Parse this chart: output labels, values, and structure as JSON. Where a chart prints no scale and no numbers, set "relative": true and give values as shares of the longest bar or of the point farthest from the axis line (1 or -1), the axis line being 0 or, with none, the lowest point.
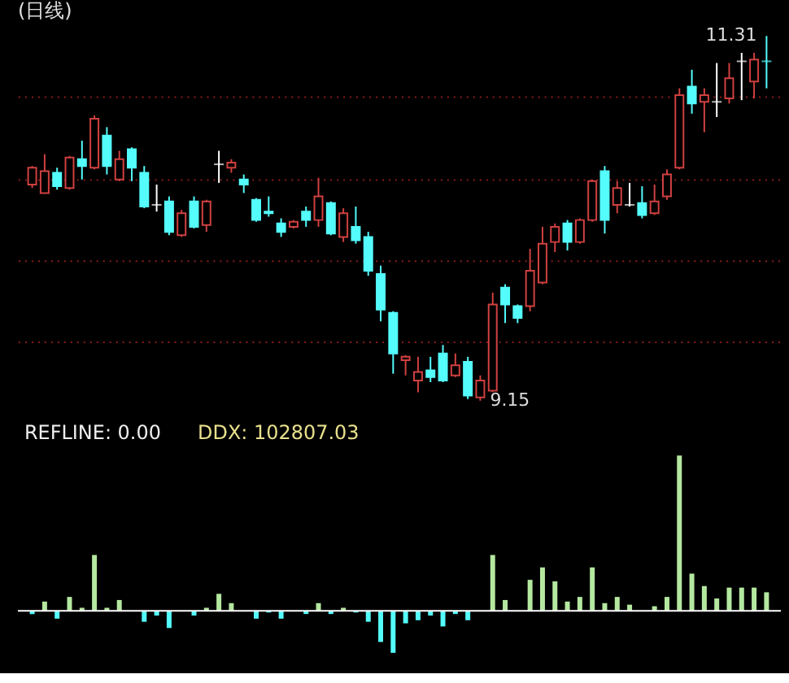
{
  "chart_data": [
    {
      "type": "candlestick",
      "title": "(日线)",
      "categories": [
        null,
        null,
        null,
        null,
        null,
        null,
        null,
        null,
        null,
        null,
        null,
        null,
        null,
        null,
        null,
        null,
        null,
        null,
        null,
        null,
        null,
        null,
        null,
        null,
        null,
        null,
        null,
        null,
        null,
        null,
        null,
        null,
        null,
        null,
        null,
        null,
        null,
        null,
        null,
        null,
        null,
        null,
        null,
        null,
        null,
        null,
        null,
        null,
        null,
        null,
        null,
        null,
        null,
        null,
        null,
        null,
        null,
        null,
        null,
        null
      ],
      "ohlc": [
        [
          10.43,
          10.54,
          10.41,
          10.53
        ],
        [
          10.38,
          10.61,
          10.38,
          10.51
        ],
        [
          10.5,
          10.53,
          10.4,
          10.42
        ],
        [
          10.41,
          10.6,
          10.4,
          10.59
        ],
        [
          10.58,
          10.69,
          10.46,
          10.54
        ],
        [
          10.53,
          10.84,
          10.52,
          10.82
        ],
        [
          10.72,
          10.77,
          10.49,
          10.54
        ],
        [
          10.46,
          10.63,
          10.45,
          10.58
        ],
        [
          10.64,
          10.65,
          10.45,
          10.53
        ],
        [
          10.5,
          10.54,
          10.29,
          10.3
        ],
        [
          10.31,
          10.43,
          10.27,
          10.31
        ],
        [
          10.33,
          10.36,
          10.13,
          10.15
        ],
        [
          10.13,
          10.28,
          10.12,
          10.26
        ],
        [
          10.33,
          10.36,
          10.17,
          10.18
        ],
        [
          10.19,
          10.34,
          10.15,
          10.33
        ],
        [
          10.55,
          10.63,
          10.44,
          10.55
        ],
        [
          10.53,
          10.58,
          10.5,
          10.56
        ],
        [
          10.46,
          10.49,
          10.38,
          10.43
        ],
        [
          10.34,
          10.35,
          10.21,
          10.22
        ],
        [
          10.27,
          10.36,
          10.24,
          10.26
        ],
        [
          10.2,
          10.23,
          10.12,
          10.15
        ],
        [
          10.18,
          10.22,
          10.17,
          10.21
        ],
        [
          10.27,
          10.3,
          10.18,
          10.22
        ],
        [
          10.22,
          10.47,
          10.18,
          10.36
        ],
        [
          10.32,
          10.33,
          10.13,
          10.14
        ],
        [
          10.12,
          10.29,
          10.09,
          10.26
        ],
        [
          10.18,
          10.3,
          10.08,
          10.1
        ],
        [
          10.12,
          10.15,
          9.89,
          9.92
        ],
        [
          9.9,
          9.95,
          9.62,
          9.69
        ],
        [
          9.67,
          9.68,
          9.31,
          9.43
        ],
        [
          9.39,
          9.42,
          9.3,
          9.41
        ],
        [
          9.27,
          9.41,
          9.2,
          9.32
        ],
        [
          9.33,
          9.41,
          9.26,
          9.29
        ],
        [
          9.43,
          9.48,
          9.26,
          9.27
        ],
        [
          9.3,
          9.43,
          9.29,
          9.36
        ],
        [
          9.38,
          9.41,
          9.16,
          9.18
        ],
        [
          9.17,
          9.3,
          9.15,
          9.27
        ],
        [
          9.21,
          9.79,
          9.2,
          9.72
        ],
        [
          9.82,
          9.84,
          9.61,
          9.72
        ],
        [
          9.71,
          9.72,
          9.61,
          9.64
        ],
        [
          9.71,
          10.05,
          9.68,
          9.92
        ],
        [
          9.85,
          10.18,
          9.84,
          10.08
        ],
        [
          10.09,
          10.2,
          10.03,
          10.18
        ],
        [
          10.2,
          10.22,
          10.04,
          10.09
        ],
        [
          10.09,
          10.23,
          10.08,
          10.22
        ],
        [
          10.22,
          10.46,
          10.21,
          10.45
        ],
        [
          10.51,
          10.54,
          10.14,
          10.22
        ],
        [
          10.31,
          10.45,
          10.26,
          10.41
        ],
        [
          10.31,
          10.44,
          10.3,
          10.31
        ],
        [
          10.32,
          10.42,
          10.23,
          10.25
        ],
        [
          10.26,
          10.43,
          10.25,
          10.33
        ],
        [
          10.36,
          10.52,
          10.34,
          10.49
        ],
        [
          10.53,
          11.0,
          10.52,
          10.96
        ],
        [
          11.01,
          11.11,
          10.85,
          10.91
        ],
        [
          10.92,
          11.0,
          10.74,
          10.96
        ],
        [
          10.92,
          11.15,
          10.83,
          10.92
        ],
        [
          10.94,
          11.15,
          10.91,
          11.06
        ],
        [
          11.16,
          11.21,
          10.93,
          11.16
        ],
        [
          11.04,
          11.21,
          10.94,
          11.17
        ],
        [
          11.16,
          11.31,
          11.0,
          11.16
        ]
      ],
      "colors": [
        "#d04040",
        "#d04040",
        "#54fcfc",
        "#d04040",
        "#54fcfc",
        "#d04040",
        "#54fcfc",
        "#d04040",
        "#54fcfc",
        "#54fcfc",
        "#ffffff",
        "#54fcfc",
        "#d04040",
        "#54fcfc",
        "#d04040",
        "#ffffff",
        "#d04040",
        "#54fcfc",
        "#54fcfc",
        "#54fcfc",
        "#54fcfc",
        "#d04040",
        "#54fcfc",
        "#d04040",
        "#54fcfc",
        "#d04040",
        "#54fcfc",
        "#54fcfc",
        "#54fcfc",
        "#54fcfc",
        "#d04040",
        "#d04040",
        "#54fcfc",
        "#54fcfc",
        "#d04040",
        "#54fcfc",
        "#d04040",
        "#d04040",
        "#54fcfc",
        "#54fcfc",
        "#d04040",
        "#d04040",
        "#d04040",
        "#54fcfc",
        "#d04040",
        "#d04040",
        "#54fcfc",
        "#d04040",
        "#ffffff",
        "#54fcfc",
        "#d04040",
        "#d04040",
        "#d04040",
        "#54fcfc",
        "#d04040",
        "#ffffff",
        "#d04040",
        "#ffffff",
        "#d04040",
        "#54fcfc"
      ],
      "yticks": [
        {
          "value": 9.5,
          "label": null
        },
        {
          "value": 9.98,
          "label": null
        },
        {
          "value": 10.46,
          "label": null
        },
        {
          "value": 10.95,
          "label": null
        }
      ],
      "grid": "y",
      "tick_labels": false,
      "annotations": [
        "11.31",
        "9.15"
      ]
    },
    {
      "type": "bar",
      "relative": true,
      "categories": [
        null,
        null,
        null,
        null,
        null,
        null,
        null,
        null,
        null,
        null,
        null,
        null,
        null,
        null,
        null,
        null,
        null,
        null,
        null,
        null,
        null,
        null,
        null,
        null,
        null,
        null,
        null,
        null,
        null,
        null,
        null,
        null,
        null,
        null,
        null,
        null,
        null,
        null,
        null,
        null,
        null,
        null,
        null,
        null,
        null,
        null,
        null,
        null,
        null,
        null,
        null,
        null,
        null,
        null,
        null,
        null,
        null,
        null,
        null,
        null
      ],
      "values": [
        -0.02,
        0.06,
        -0.05,
        0.09,
        0.02,
        0.36,
        0.02,
        0.07,
        0,
        -0.07,
        -0.03,
        -0.11,
        0,
        -0.03,
        0.02,
        0.11,
        0.05,
        0,
        -0.05,
        -0.01,
        -0.05,
        0,
        -0.02,
        0.05,
        -0.02,
        0.02,
        -0.01,
        -0.07,
        -0.2,
        -0.27,
        -0.08,
        -0.06,
        -0.03,
        -0.1,
        -0.02,
        -0.06,
        0,
        0.36,
        0.07,
        0,
        0.2,
        0.28,
        0.19,
        0.06,
        0.09,
        0.28,
        0.05,
        0.09,
        0.04,
        0,
        0.03,
        0.09,
        1,
        0.24,
        0.16,
        0.08,
        0.15,
        0.15,
        0.15,
        0.12
      ],
      "colors": [
        "#54fcfc",
        "#b4e8a0",
        "#54fcfc",
        "#b4e8a0",
        "#b4e8a0",
        "#b4e8a0",
        "#b4e8a0",
        "#b4e8a0",
        "#b4e8a0",
        "#54fcfc",
        "#54fcfc",
        "#54fcfc",
        "#b4e8a0",
        "#54fcfc",
        "#b4e8a0",
        "#b4e8a0",
        "#b4e8a0",
        "#b4e8a0",
        "#54fcfc",
        "#54fcfc",
        "#54fcfc",
        "#b4e8a0",
        "#54fcfc",
        "#b4e8a0",
        "#54fcfc",
        "#b4e8a0",
        "#54fcfc",
        "#54fcfc",
        "#54fcfc",
        "#54fcfc",
        "#54fcfc",
        "#54fcfc",
        "#54fcfc",
        "#54fcfc",
        "#54fcfc",
        "#54fcfc",
        "#b4e8a0",
        "#b4e8a0",
        "#b4e8a0",
        "#b4e8a0",
        "#b4e8a0",
        "#b4e8a0",
        "#b4e8a0",
        "#b4e8a0",
        "#b4e8a0",
        "#b4e8a0",
        "#b4e8a0",
        "#b4e8a0",
        "#b4e8a0",
        "#b4e8a0",
        "#b4e8a0",
        "#b4e8a0",
        "#b4e8a0",
        "#b4e8a0",
        "#b4e8a0",
        "#b4e8a0",
        "#b4e8a0",
        "#b4e8a0",
        "#b4e8a0",
        "#b4e8a0"
      ],
      "ref_lines": [
        {
          "axis": "y",
          "value": 0,
          "color": "#ffffff"
        }
      ],
      "annotations": [
        "REFLINE: 0.00",
        "DDX: 102807.03"
      ]
    }
  ]
}
